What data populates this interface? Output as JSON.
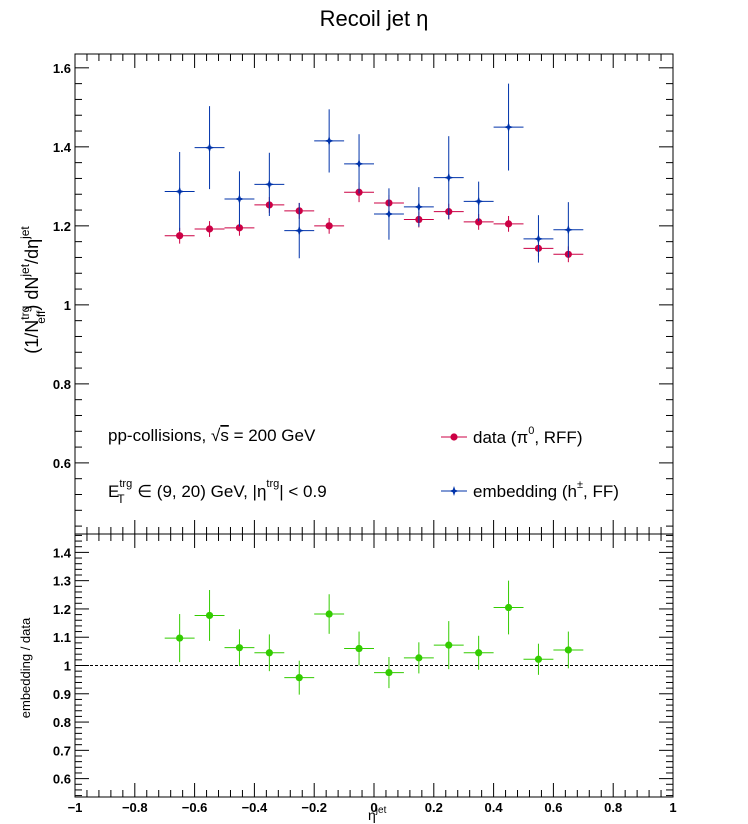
{
  "chart_data": [
    {
      "type": "scatter",
      "title": "Recoil jet η",
      "ylabel_parts": [
        "(1/N",
        "trg",
        "eff",
        ") dN",
        "jet",
        "/dη",
        "jet"
      ],
      "xlim": [
        -1,
        1
      ],
      "ylim": [
        0.42,
        1.635
      ],
      "y_ticks": [
        0.6,
        0.8,
        1,
        1.2,
        1.4,
        1.6
      ],
      "y_tick_labels": [
        "0.6",
        "0.8",
        "1",
        "1.2",
        "1.4",
        "1.6"
      ],
      "annotations": {
        "line1_pre": "pp-collisions, ",
        "line1_sqrt": "√",
        "line1_s": "s",
        "line1_post": " = 200 GeV",
        "line2_E": "E",
        "line2_sup": "trg",
        "line2_sub": "T",
        "line2_mid": " ∈ (9, 20) GeV, |η",
        "line2_sup2": "trg",
        "line2_end": "| < 0.9"
      },
      "series": [
        {
          "name_parts": [
            "data (π",
            "0",
            ", RFF)"
          ],
          "color": "#cc0044",
          "marker": "circle",
          "x": [
            -0.65,
            -0.55,
            -0.45,
            -0.35,
            -0.25,
            -0.15,
            -0.05,
            0.05,
            0.15,
            0.25,
            0.35,
            0.45,
            0.55,
            0.65
          ],
          "y": [
            1.175,
            1.192,
            1.195,
            1.253,
            1.238,
            1.2,
            1.285,
            1.258,
            1.216,
            1.236,
            1.21,
            1.205,
            1.143,
            1.128
          ],
          "yerr": [
            0.02,
            0.02,
            0.02,
            0.02,
            0.02,
            0.02,
            0.025,
            0.02,
            0.02,
            0.02,
            0.02,
            0.02,
            0.02,
            0.02
          ]
        },
        {
          "name_parts": [
            "embedding (h",
            "±",
            ", FF)"
          ],
          "color": "#0033aa",
          "marker": "star",
          "x": [
            -0.65,
            -0.55,
            -0.45,
            -0.35,
            -0.25,
            -0.15,
            -0.05,
            0.05,
            0.15,
            0.25,
            0.35,
            0.45,
            0.55,
            0.65
          ],
          "y": [
            1.287,
            1.398,
            1.268,
            1.305,
            1.188,
            1.415,
            1.357,
            1.23,
            1.248,
            1.322,
            1.262,
            1.45,
            1.167,
            1.19
          ],
          "yerr": [
            0.1,
            0.105,
            0.07,
            0.08,
            0.07,
            0.08,
            0.075,
            0.065,
            0.05,
            0.105,
            0.05,
            0.11,
            0.06,
            0.07
          ]
        }
      ]
    },
    {
      "type": "scatter",
      "ylabel": "embedding / data",
      "xlabel": "η",
      "xlabel_sup": "jet",
      "xlim": [
        -1,
        1
      ],
      "ylim": [
        0.535,
        1.465
      ],
      "x_ticks": [
        -1,
        -0.8,
        -0.6,
        -0.4,
        -0.2,
        0,
        0.2,
        0.4,
        0.6,
        0.8,
        1
      ],
      "x_tick_labels": [
        "−1",
        "−0.8",
        "−0.6",
        "−0.4",
        "−0.2",
        "0",
        "0.2",
        "0.4",
        "0.6",
        "0.8",
        "1"
      ],
      "y_ticks": [
        0.6,
        0.7,
        0.8,
        0.9,
        1,
        1.1,
        1.2,
        1.3,
        1.4
      ],
      "y_tick_labels": [
        "0.6",
        "0.7",
        "0.8",
        "0.9",
        "1",
        "1.1",
        "1.2",
        "1.3",
        "1.4"
      ],
      "reference_line": 1,
      "series": [
        {
          "color": "#33cc00",
          "marker": "circle",
          "x": [
            -0.65,
            -0.55,
            -0.45,
            -0.35,
            -0.25,
            -0.15,
            -0.05,
            0.05,
            0.15,
            0.25,
            0.35,
            0.45,
            0.55,
            0.65
          ],
          "y": [
            1.097,
            1.177,
            1.063,
            1.045,
            0.957,
            1.182,
            1.06,
            0.975,
            1.027,
            1.072,
            1.045,
            1.205,
            1.022,
            1.055
          ],
          "yerr": [
            0.085,
            0.09,
            0.065,
            0.065,
            0.06,
            0.07,
            0.06,
            0.055,
            0.055,
            0.085,
            0.06,
            0.095,
            0.055,
            0.065
          ]
        }
      ]
    }
  ]
}
